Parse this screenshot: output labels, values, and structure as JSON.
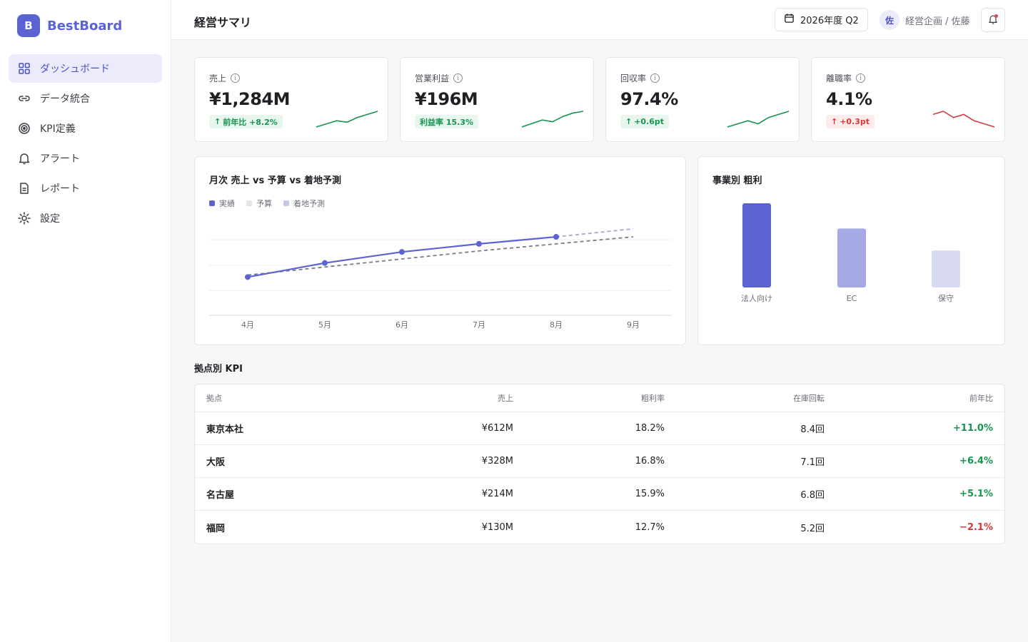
{
  "brand": {
    "logo_letter": "B",
    "name": "BestBoard"
  },
  "sidebar": {
    "items": [
      {
        "label": "ダッシュボード",
        "icon": "grid-icon",
        "active": true
      },
      {
        "label": "データ統合",
        "icon": "link-icon",
        "active": false
      },
      {
        "label": "KPI定義",
        "icon": "target-icon",
        "active": false
      },
      {
        "label": "アラート",
        "icon": "bell-icon",
        "active": false
      },
      {
        "label": "レポート",
        "icon": "document-icon",
        "active": false
      },
      {
        "label": "設定",
        "icon": "gear-icon",
        "active": false
      }
    ]
  },
  "header": {
    "title": "経営サマリ",
    "period": "2026年度 Q2",
    "avatar": "佐",
    "user": "経営企画 / 佐藤"
  },
  "kpis": [
    {
      "label": "売上",
      "value": "¥1,284M",
      "badge": "前年比 +8.2%",
      "arrow": "↑",
      "tone": "good",
      "spark": [
        2,
        4,
        6,
        5,
        8,
        10,
        12
      ]
    },
    {
      "label": "営業利益",
      "value": "¥196M",
      "badge": "利益率 15.3%",
      "arrow": "",
      "tone": "good",
      "spark": [
        2,
        4,
        6,
        5,
        8,
        10,
        11
      ]
    },
    {
      "label": "回収率",
      "value": "97.4%",
      "badge": "+0.6pt",
      "arrow": "↑",
      "tone": "good",
      "spark": [
        4,
        5,
        6,
        5,
        7,
        8,
        9
      ]
    },
    {
      "label": "離職率",
      "value": "4.1%",
      "badge": "+0.3pt",
      "arrow": "↑",
      "tone": "bad",
      "spark": [
        9,
        10,
        8,
        9,
        7,
        6,
        5
      ]
    }
  ],
  "colors": {
    "accent": "#5b63d3",
    "good": "#179452",
    "bad": "#d23a3a"
  },
  "line_chart": {
    "title": "月次 売上 vs 予算 vs 着地予測",
    "legend": [
      "実績",
      "予算",
      "着地予測"
    ],
    "chart_data": {
      "type": "line",
      "categories": [
        "4月",
        "5月",
        "6月",
        "7月",
        "8月",
        "9月"
      ],
      "series": [
        {
          "name": "実績",
          "values": [
            198,
            212,
            223,
            231,
            238,
            null
          ],
          "color": "#5b63d3"
        },
        {
          "name": "予算",
          "values": [
            200,
            208,
            216,
            224,
            231,
            238
          ],
          "color": "#7a7c84"
        },
        {
          "name": "着地予測",
          "values": [
            null,
            null,
            null,
            null,
            238,
            246
          ],
          "color": "#a9acdf"
        }
      ],
      "ylim": [
        160,
        260
      ],
      "grid": true
    }
  },
  "bar_chart": {
    "title": "事業別 粗利",
    "chart_data": {
      "type": "bar",
      "categories": [
        "法人向け",
        "EC",
        "保守"
      ],
      "values": [
        100,
        70,
        44
      ],
      "colors": [
        "#5b63d3",
        "#a5a9e4",
        "#d9daf4"
      ],
      "ylim": [
        0,
        100
      ]
    }
  },
  "table": {
    "title": "拠点別 KPI",
    "columns": [
      "拠点",
      "売上",
      "粗利率",
      "在庫回転",
      "前年比"
    ],
    "rows": [
      {
        "site": "東京本社",
        "sales": "¥612M",
        "margin": "18.2%",
        "turnover": "8.4回",
        "yoy": "+11.0%",
        "tone": "pos"
      },
      {
        "site": "大阪",
        "sales": "¥328M",
        "margin": "16.8%",
        "turnover": "7.1回",
        "yoy": "+6.4%",
        "tone": "pos"
      },
      {
        "site": "名古屋",
        "sales": "¥214M",
        "margin": "15.9%",
        "turnover": "6.8回",
        "yoy": "+5.1%",
        "tone": "pos"
      },
      {
        "site": "福岡",
        "sales": "¥130M",
        "margin": "12.7%",
        "turnover": "5.2回",
        "yoy": "−2.1%",
        "tone": "neg"
      }
    ]
  }
}
